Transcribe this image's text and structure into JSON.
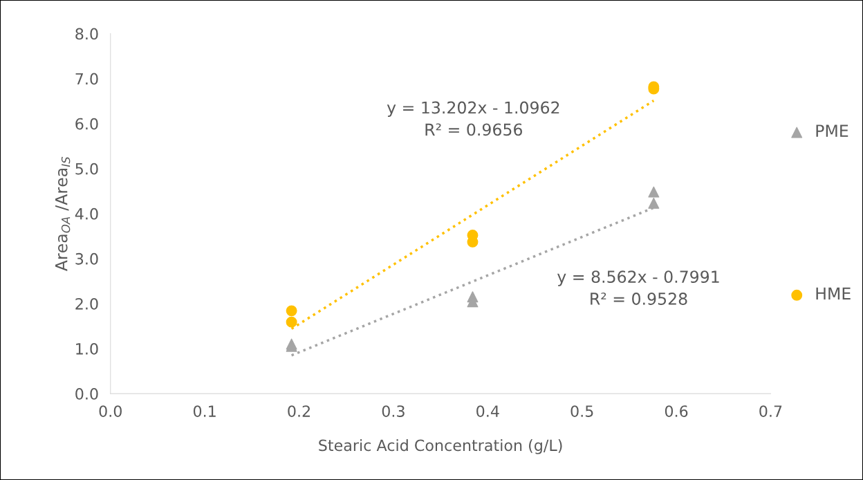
{
  "chart_data": {
    "type": "scatter",
    "xlabel": "Stearic Acid Concentration (g/L)",
    "ylabel": "Area$_{OA}$ /Area$_{IS}$",
    "xlim": [
      0,
      0.7
    ],
    "ylim": [
      0,
      8
    ],
    "xticks": [
      {
        "value": 0,
        "label": "0.0"
      },
      0.1,
      0.2,
      0.3,
      0.4,
      0.5,
      0.6,
      0.7
    ],
    "yticks": [
      {
        "value": 0,
        "label": "0.0"
      },
      {
        "value": 1,
        "label": "1.0"
      },
      {
        "value": 2,
        "label": "2.0"
      },
      {
        "value": 3,
        "label": "3.0"
      },
      {
        "value": 4,
        "label": "4.0"
      },
      {
        "value": 5,
        "label": "5.0"
      },
      {
        "value": 6,
        "label": "6.0"
      },
      {
        "value": 7,
        "label": "7.0"
      },
      {
        "value": 8,
        "label": "8.0"
      }
    ],
    "grid": false,
    "legend": "right",
    "series": [
      {
        "name": "PME",
        "color": "#a5a5a5",
        "marker": "triangle",
        "x": [
          0.192,
          0.192,
          0.384,
          0.384,
          0.576,
          0.576
        ],
        "values": [
          1.1,
          1.05,
          2.15,
          2.04,
          4.48,
          4.23
        ]
      },
      {
        "name": "HME",
        "color": "#ffc000",
        "marker": "circle",
        "x": [
          0.192,
          0.192,
          0.384,
          0.384,
          0.576,
          0.576
        ],
        "values": [
          1.84,
          1.59,
          3.52,
          3.37,
          6.82,
          6.77
        ]
      },
      {
        "type": "line",
        "color": "#a5a5a5",
        "marker": "none",
        "line_style": "dotted",
        "x": [
          0.192,
          0.576
        ],
        "values": [
          0.85,
          4.13
        ]
      },
      {
        "type": "line",
        "color": "#ffc000",
        "marker": "none",
        "line_style": "dotted",
        "x": [
          0.192,
          0.576
        ],
        "values": [
          1.44,
          6.51
        ]
      }
    ],
    "annotations": [
      "y = 13.202x - 1.0962\nR² = 0.9656",
      "y = 8.562x - 0.7991\nR² = 0.9528"
    ]
  }
}
